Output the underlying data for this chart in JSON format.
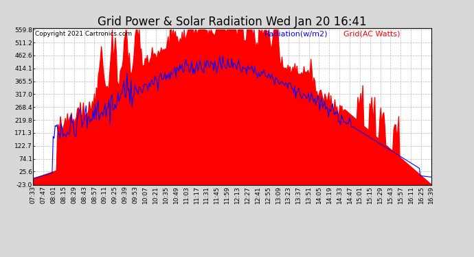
{
  "title": "Grid Power & Solar Radiation Wed Jan 20 16:41",
  "copyright": "Copyright 2021 Cartronics.com",
  "legend_radiation": "Radiation(w/m2)",
  "legend_grid": "Grid(AC Watts)",
  "yticks": [
    559.8,
    511.2,
    462.6,
    414.1,
    365.5,
    317.0,
    268.4,
    219.8,
    171.3,
    122.7,
    74.1,
    25.6,
    -23.0
  ],
  "ymin": -23.0,
  "ymax": 559.8,
  "bg_color": "#d8d8d8",
  "plot_bg_color": "#ffffff",
  "grid_color": "#bbbbbb",
  "radiation_color": "#0000ff",
  "grid_fill_color": "#ff0000",
  "title_fontsize": 12,
  "copyright_fontsize": 6.5,
  "legend_fontsize": 8,
  "tick_fontsize": 6.5,
  "xtick_labels": [
    "07:33",
    "07:47",
    "08:01",
    "08:15",
    "08:29",
    "08:43",
    "08:57",
    "09:11",
    "09:25",
    "09:39",
    "09:53",
    "10:07",
    "10:21",
    "10:35",
    "10:49",
    "11:03",
    "11:17",
    "11:31",
    "11:45",
    "11:59",
    "12:13",
    "12:27",
    "12:41",
    "12:55",
    "13:09",
    "13:23",
    "13:37",
    "13:51",
    "14:05",
    "14:19",
    "14:33",
    "14:47",
    "15:01",
    "15:15",
    "15:29",
    "15:43",
    "15:57",
    "16:11",
    "16:25",
    "16:39"
  ]
}
